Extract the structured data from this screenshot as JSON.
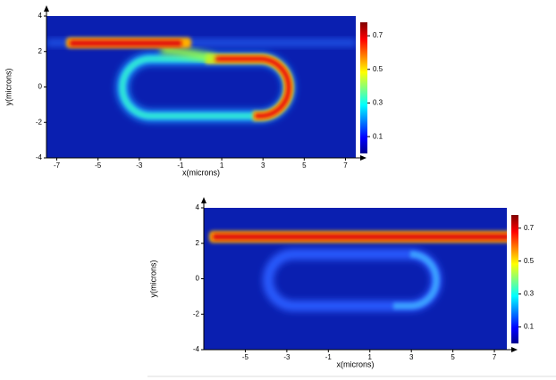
{
  "chart_data": [
    {
      "type": "heatmap",
      "xlabel": "x(microns)",
      "ylabel": "y(microns)",
      "xlim": [
        -7.5,
        7.5
      ],
      "ylim": [
        -4,
        4
      ],
      "xticks": [
        -7,
        -5,
        -3,
        -1,
        1,
        3,
        5,
        7
      ],
      "yticks": [
        -4,
        -2,
        0,
        2,
        4
      ],
      "colorbar_lim": [
        0,
        0.78
      ],
      "colorbar_ticks": [
        0.1,
        0.3,
        0.5,
        0.7
      ]
    },
    {
      "type": "heatmap",
      "xlabel": "x(microns)",
      "ylabel": "y(microns)",
      "xlim": [
        -7,
        7.6
      ],
      "ylim": [
        -4,
        4
      ],
      "xticks": [
        -5,
        -3,
        -1,
        1,
        3,
        5,
        7
      ],
      "yticks": [
        -4,
        -2,
        0,
        2,
        4
      ],
      "colorbar_lim": [
        0,
        0.78
      ],
      "colorbar_ticks": [
        0.1,
        0.3,
        0.5,
        0.7
      ]
    }
  ]
}
